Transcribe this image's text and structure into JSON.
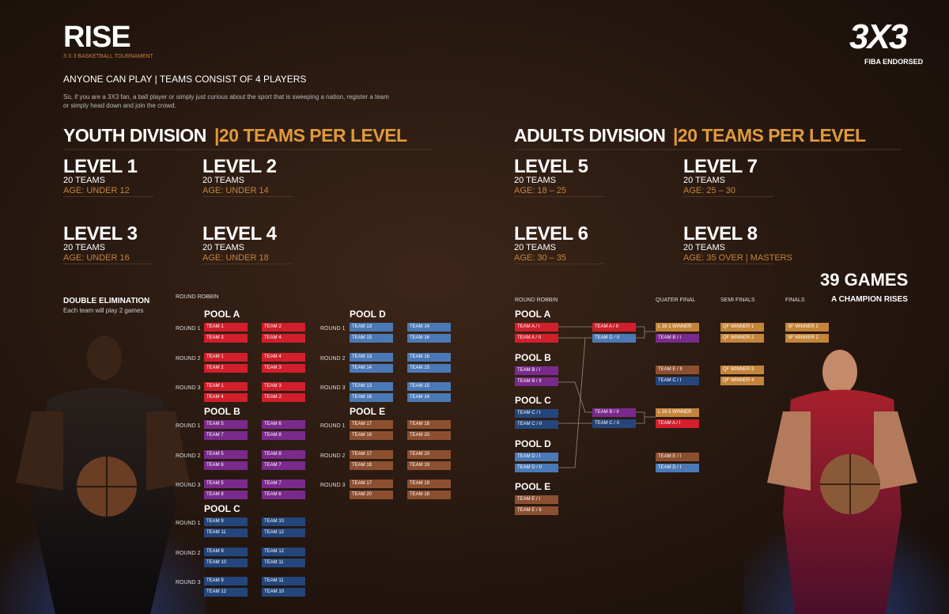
{
  "header": {
    "title": "RISE",
    "subtitle": "3 X 3 BASKETBALL TOURNAMENT",
    "tagline": "ANYONE CAN PLAY | TEAMS CONSIST OF 4 PLAYERS",
    "intro": "So, if you are a 3X3 fan, a ball player or simply just curious about the sport that is sweeping a nation, register a team or simply head down and join the crowd."
  },
  "logo": {
    "mark": "3X3",
    "caption": "FIBA ENDORSED"
  },
  "divisions": [
    {
      "name": "YOUTH DIVISION",
      "teams_per_level": "|20 TEAMS PER LEVEL",
      "levels": [
        {
          "name": "LEVEL 1",
          "teams": "20 TEAMS",
          "age": "AGE: UNDER 12"
        },
        {
          "name": "LEVEL 2",
          "teams": "20 TEAMS",
          "age": "AGE: UNDER 14"
        },
        {
          "name": "LEVEL 3",
          "teams": "20 TEAMS",
          "age": "AGE: UNDER 16"
        },
        {
          "name": "LEVEL 4",
          "teams": "20 TEAMS",
          "age": "AGE: UNDER 18"
        }
      ]
    },
    {
      "name": "ADULTS DIVISION",
      "teams_per_level": "|20 TEAMS PER LEVEL",
      "levels": [
        {
          "name": "LEVEL 5",
          "teams": "20 TEAMS",
          "age": "AGE: 18 – 25"
        },
        {
          "name": "LEVEL 7",
          "teams": "20 TEAMS",
          "age": "AGE: 25 – 30"
        },
        {
          "name": "LEVEL 6",
          "teams": "20 TEAMS",
          "age": "AGE: 30 – 35"
        },
        {
          "name": "LEVEL 8",
          "teams": "20 TEAMS",
          "age": "AGE: 35 OVER | MASTERS"
        }
      ]
    }
  ],
  "youth_schedule": {
    "format": "DOUBLE ELIMINATION",
    "note": "Each team will play 2 games",
    "heading": "ROUND ROBBIN",
    "pools": [
      {
        "name": "POOL A",
        "color": "#d21f2b",
        "rounds": [
          {
            "label": "ROUND 1",
            "matches": [
              [
                "TEAM 1",
                "TEAM 3"
              ],
              [
                "TEAM 2",
                "TEAM 4"
              ]
            ]
          },
          {
            "label": "ROUND 2",
            "matches": [
              [
                "TEAM 1",
                "TEAM 2"
              ],
              [
                "TEAM 4",
                "TEAM 3"
              ]
            ]
          },
          {
            "label": "ROUND 3",
            "matches": [
              [
                "TEAM 1",
                "TEAM 4"
              ],
              [
                "TEAM 3",
                "TEAM 2"
              ]
            ]
          }
        ]
      },
      {
        "name": "POOL B",
        "color": "#7a2a8c",
        "rounds": [
          {
            "label": "ROUND 1",
            "matches": [
              [
                "TEAM 5",
                "TEAM 7"
              ],
              [
                "TEAM 6",
                "TEAM 8"
              ]
            ]
          },
          {
            "label": "ROUND 2",
            "matches": [
              [
                "TEAM 5",
                "TEAM 6"
              ],
              [
                "TEAM 8",
                "TEAM 7"
              ]
            ]
          },
          {
            "label": "ROUND 3",
            "matches": [
              [
                "TEAM 5",
                "TEAM 8"
              ],
              [
                "TEAM 7",
                "TEAM 6"
              ]
            ]
          }
        ]
      },
      {
        "name": "POOL C",
        "color": "#24467c",
        "rounds": [
          {
            "label": "ROUND 1",
            "matches": [
              [
                "TEAM 9",
                "TEAM 11"
              ],
              [
                "TEAM 10",
                "TEAM 12"
              ]
            ]
          },
          {
            "label": "ROUND 2",
            "matches": [
              [
                "TEAM 9",
                "TEAM 10"
              ],
              [
                "TEAM 12",
                "TEAM 11"
              ]
            ]
          },
          {
            "label": "ROUND 3",
            "matches": [
              [
                "TEAM 9",
                "TEAM 12"
              ],
              [
                "TEAM 11",
                "TEAM 10"
              ]
            ]
          }
        ]
      },
      {
        "name": "POOL D",
        "color": "#4b79b6",
        "rounds": [
          {
            "label": "ROUND 1",
            "matches": [
              [
                "TEAM 13",
                "TEAM 15"
              ],
              [
                "TEAM 14",
                "TEAM 16"
              ]
            ]
          },
          {
            "label": "ROUND 2",
            "matches": [
              [
                "TEAM 13",
                "TEAM 14"
              ],
              [
                "TEAM 16",
                "TEAM 15"
              ]
            ]
          },
          {
            "label": "ROUND 3",
            "matches": [
              [
                "TEAM 13",
                "TEAM 16"
              ],
              [
                "TEAM 15",
                "TEAM 14"
              ]
            ]
          }
        ]
      },
      {
        "name": "POOL E",
        "color": "#8c5030",
        "rounds": [
          {
            "label": "ROUND 1",
            "matches": [
              [
                "TEAM 17",
                "TEAM 19"
              ],
              [
                "TEAM 18",
                "TEAM 20"
              ]
            ]
          },
          {
            "label": "ROUND 2",
            "matches": [
              [
                "TEAM 17",
                "TEAM 18"
              ],
              [
                "TEAM 20",
                "TEAM 19"
              ]
            ]
          },
          {
            "label": "ROUND 3",
            "matches": [
              [
                "TEAM 17",
                "TEAM 20"
              ],
              [
                "TEAM 19",
                "TEAM 18"
              ]
            ]
          }
        ]
      }
    ]
  },
  "adult_schedule": {
    "heading": "ROUND ROBBIN",
    "pools": [
      {
        "name": "POOL A",
        "color": "#d21f2b",
        "teams": [
          "TEAM A / I",
          "TEAM A / II"
        ]
      },
      {
        "name": "POOL B",
        "color": "#7a2a8c",
        "teams": [
          "TEAM B / I",
          "TEAM B / II"
        ]
      },
      {
        "name": "POOL C",
        "color": "#24467c",
        "teams": [
          "TEAM C / I",
          "TEAM C / II"
        ]
      },
      {
        "name": "POOL D",
        "color": "#4b79b6",
        "teams": [
          "TEAM D / I",
          "TEAM D / II"
        ]
      },
      {
        "name": "POOL E",
        "color": "#8c5030",
        "teams": [
          "TEAM E / I",
          "TEAM E / II"
        ]
      }
    ],
    "stages": [
      {
        "matches": [
          [
            {
              "label": "TEAM A / II",
              "color": "#d21f2b"
            },
            {
              "label": "TEAM D / II",
              "color": "#4b79b6"
            }
          ],
          [
            {
              "label": "TEAM B / II",
              "color": "#7a2a8c"
            },
            {
              "label": "TEAM C / II",
              "color": "#24467c"
            }
          ]
        ]
      },
      {
        "heading": "QUATER FINAL",
        "matches": [
          [
            {
              "label": "L 16 1 WINNER",
              "color": "#c4843a"
            },
            {
              "label": "TEAM B / I",
              "color": "#7a2a8c"
            }
          ],
          [
            {
              "label": "TEAM E / II",
              "color": "#8c5030"
            },
            {
              "label": "TEAM C / I",
              "color": "#24467c"
            }
          ],
          [
            {
              "label": "L 16 5 WINNER",
              "color": "#c4843a"
            },
            {
              "label": "TEAM A / I",
              "color": "#d21f2b"
            }
          ],
          [
            {
              "label": "TEAM E / I",
              "color": "#8c5030"
            },
            {
              "label": "TEAM D / I",
              "color": "#4b79b6"
            }
          ]
        ]
      },
      {
        "heading": "SEMI FINALS",
        "matches": [
          [
            {
              "label": "QF WINNER 1",
              "color": "#c4843a"
            },
            {
              "label": "QF WINNER 2",
              "color": "#c4843a"
            }
          ],
          [
            {
              "label": "QF WINNER 3",
              "color": "#c4843a"
            },
            {
              "label": "QF WINNER 4",
              "color": "#c4843a"
            }
          ]
        ]
      },
      {
        "heading": "FINALS",
        "matches": [
          [
            {
              "label": "SF WINNER 1",
              "color": "#c4843a"
            },
            {
              "label": "SF WINNER 2",
              "color": "#c4843a"
            }
          ]
        ]
      }
    ],
    "summary": {
      "games": "39 GAMES",
      "tagline": "A CHAMPION RISES"
    }
  }
}
